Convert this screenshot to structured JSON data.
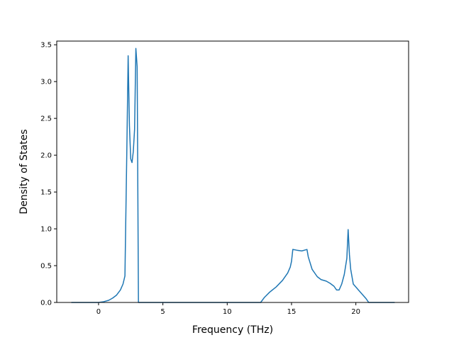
{
  "chart_data": {
    "type": "line",
    "title": "",
    "xlabel": "Frequency (THz)",
    "ylabel": "Density of States",
    "xlim": [
      -3.25,
      24.1
    ],
    "ylim": [
      0,
      3.55
    ],
    "xticks": [
      0,
      5,
      10,
      15,
      20
    ],
    "xtick_labels": [
      "0",
      "5",
      "10",
      "15",
      "20"
    ],
    "yticks": [
      0.0,
      0.5,
      1.0,
      1.5,
      2.0,
      2.5,
      3.0,
      3.5
    ],
    "ytick_labels": [
      "0.0",
      "0.5",
      "1.0",
      "1.5",
      "2.0",
      "2.5",
      "3.0",
      "3.5"
    ],
    "grid": false,
    "legend": "none",
    "series": [
      {
        "color": "#1f77b4",
        "x": [
          -2.1,
          -1.0,
          0.0,
          0.4,
          0.8,
          1.1,
          1.4,
          1.7,
          1.9,
          2.05,
          2.2,
          2.3,
          2.4,
          2.5,
          2.6,
          2.7,
          2.8,
          2.9,
          3.0,
          3.1,
          3.2,
          3.3,
          3.4,
          5.0,
          10.0,
          12.6,
          12.9,
          13.3,
          13.8,
          14.3,
          14.7,
          14.9,
          15.0,
          15.1,
          15.4,
          15.8,
          16.2,
          16.3,
          16.6,
          17.0,
          17.3,
          17.7,
          18.0,
          18.3,
          18.5,
          18.7,
          18.9,
          19.1,
          19.3,
          19.4,
          19.5,
          19.6,
          19.8,
          20.2,
          20.6,
          20.8,
          21.0,
          22.0,
          23.0
        ],
        "y": [
          0.0,
          0.0,
          0.0,
          0.01,
          0.03,
          0.06,
          0.1,
          0.17,
          0.25,
          0.36,
          2.1,
          3.35,
          2.4,
          1.95,
          1.9,
          2.05,
          2.35,
          3.45,
          3.2,
          0.0,
          0.0,
          0.0,
          0.0,
          0.0,
          0.0,
          0.0,
          0.07,
          0.14,
          0.21,
          0.3,
          0.4,
          0.48,
          0.56,
          0.72,
          0.71,
          0.7,
          0.72,
          0.62,
          0.45,
          0.35,
          0.31,
          0.29,
          0.26,
          0.22,
          0.17,
          0.17,
          0.25,
          0.38,
          0.6,
          0.99,
          0.65,
          0.45,
          0.25,
          0.17,
          0.09,
          0.05,
          0.0,
          0.0,
          0.0
        ]
      }
    ]
  }
}
